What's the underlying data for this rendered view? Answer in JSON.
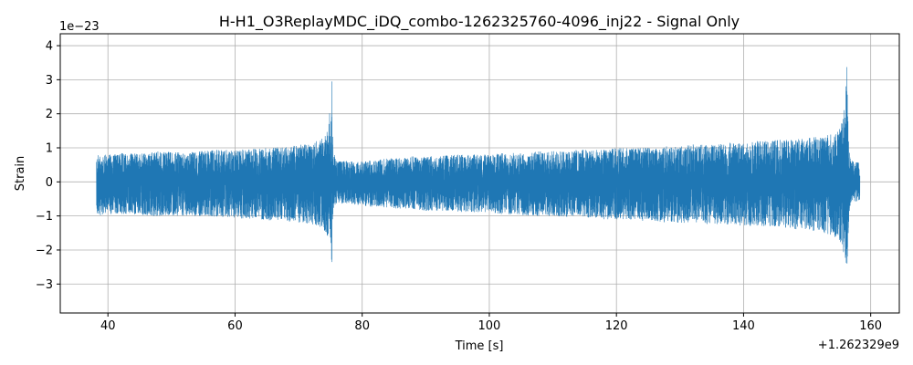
{
  "chart_data": {
    "type": "line",
    "title": "H-H1_O3ReplayMDC_iDQ_combo-1262325760-4096_inj22 - Signal Only",
    "xlabel": "Time [s]",
    "ylabel": "Strain",
    "x_offset_label": "+1.262329e9",
    "y_scale_label": "1e−23",
    "xlim": [
      32.5,
      164.5
    ],
    "ylim": [
      -3.85,
      4.35
    ],
    "x_ticks": [
      40,
      60,
      80,
      100,
      120,
      140,
      160
    ],
    "x_tick_labels": [
      "40",
      "60",
      "80",
      "100",
      "120",
      "140",
      "160"
    ],
    "y_ticks": [
      -3,
      -2,
      -1,
      0,
      1,
      2,
      3,
      4
    ],
    "y_tick_labels": [
      "−3",
      "−2",
      "−1",
      "0",
      "1",
      "2",
      "3",
      "4"
    ],
    "grid": true,
    "line_color": "#1f77b4",
    "series": [
      {
        "x": [
          38.2,
          40,
          42,
          44,
          46,
          48,
          50,
          52,
          54,
          56,
          58,
          60,
          62,
          64,
          66,
          68,
          70,
          72,
          73,
          74,
          74.5,
          75,
          75.2,
          75.3,
          75.4,
          75.5,
          75.7,
          76,
          78,
          80,
          82,
          84,
          86,
          88,
          90,
          92,
          94,
          96,
          98,
          100,
          102,
          104,
          106,
          108,
          110,
          112,
          114,
          116,
          118,
          120,
          122,
          124,
          126,
          128,
          130,
          132,
          134,
          136,
          138,
          140,
          142,
          144,
          146,
          148,
          150,
          152,
          154,
          155,
          155.5,
          156,
          156.2,
          156.35,
          156.5,
          156.6,
          156.8,
          157,
          158.3
        ],
        "env_hi": [
          0.8,
          0.8,
          0.85,
          0.85,
          0.85,
          0.9,
          0.9,
          0.85,
          0.9,
          0.95,
          0.95,
          0.95,
          0.95,
          1.0,
          1.0,
          1.05,
          1.1,
          1.15,
          1.25,
          1.3,
          1.5,
          2.2,
          3.2,
          2.0,
          1.2,
          0.9,
          0.75,
          0.65,
          0.6,
          0.6,
          0.65,
          0.7,
          0.7,
          0.75,
          0.75,
          0.75,
          0.8,
          0.8,
          0.8,
          0.8,
          0.85,
          0.85,
          0.85,
          0.9,
          0.9,
          0.9,
          0.95,
          0.95,
          0.95,
          1.0,
          1.0,
          1.0,
          1.0,
          1.05,
          1.05,
          1.1,
          1.1,
          1.1,
          1.15,
          1.15,
          1.2,
          1.2,
          1.25,
          1.25,
          1.3,
          1.35,
          1.4,
          1.5,
          1.8,
          2.4,
          4.05,
          2.5,
          1.5,
          1.0,
          0.75,
          0.65,
          0.55
        ],
        "env_lo": [
          -1.0,
          -0.95,
          -0.95,
          -0.95,
          -1.0,
          -1.0,
          -1.0,
          -1.0,
          -1.0,
          -1.0,
          -1.05,
          -1.05,
          -1.1,
          -1.1,
          -1.15,
          -1.15,
          -1.2,
          -1.25,
          -1.3,
          -1.4,
          -1.6,
          -1.9,
          -2.65,
          -1.8,
          -1.1,
          -0.85,
          -0.7,
          -0.65,
          -0.65,
          -0.7,
          -0.75,
          -0.75,
          -0.8,
          -0.8,
          -0.85,
          -0.85,
          -0.85,
          -0.9,
          -0.9,
          -0.9,
          -0.95,
          -0.95,
          -1.0,
          -1.0,
          -1.0,
          -1.05,
          -1.05,
          -1.05,
          -1.1,
          -1.1,
          -1.1,
          -1.15,
          -1.15,
          -1.2,
          -1.2,
          -1.2,
          -1.25,
          -1.25,
          -1.25,
          -1.3,
          -1.3,
          -1.3,
          -1.35,
          -1.4,
          -1.4,
          -1.5,
          -1.6,
          -1.7,
          -1.9,
          -2.3,
          -3.45,
          -2.5,
          -1.4,
          -1.0,
          -0.7,
          -0.6,
          -0.55
        ]
      }
    ]
  }
}
